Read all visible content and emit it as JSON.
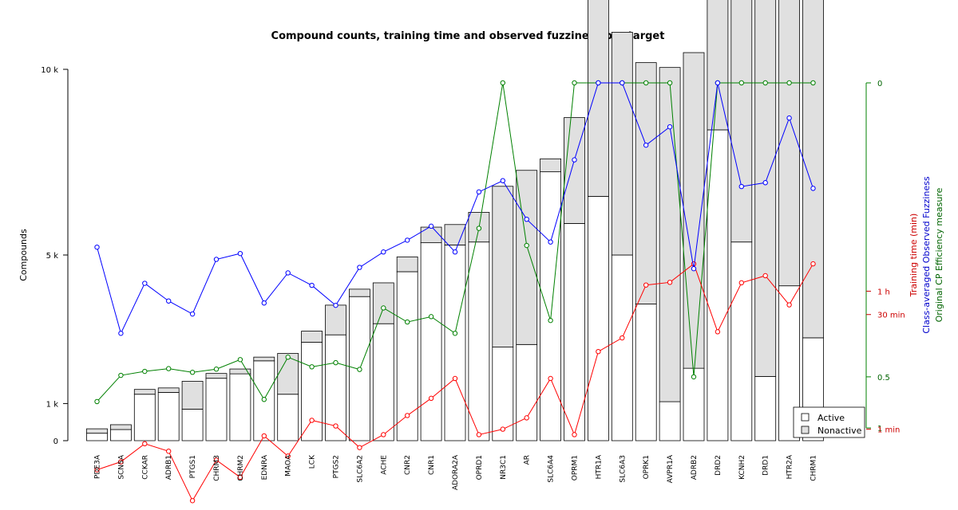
{
  "chart_data": {
    "type": "bar",
    "title": "Compound counts, training time and observed fuzziness per target",
    "ylabel_left": "Compounds",
    "ylabel_right": [
      "Training time (min)",
      "Class-averaged Observed Fuzziness",
      "Original CP Efficiency measure"
    ],
    "left_axis": {
      "ylim": [
        0,
        10000
      ],
      "ticks": [
        0,
        1000,
        5000,
        10000
      ],
      "tick_labels": [
        "0",
        "1 k",
        "5 k",
        "10 k"
      ]
    },
    "right_axis": {
      "scale": "log",
      "ticks": [
        1,
        0.5,
        0
      ],
      "tick_labels": [
        "1",
        "0.5",
        "0"
      ],
      "time_ticks": [
        60,
        30,
        1
      ],
      "time_tick_labels": [
        "1 h",
        "30 min",
        "1 min"
      ]
    },
    "categories": [
      "PDE3A",
      "SCN5A",
      "CCKAR",
      "ADRB1",
      "PTGS1",
      "CHRM3",
      "CHRM2",
      "EDNRA",
      "MAOA",
      "LCK",
      "PTGS2",
      "SLC6A2",
      "ACHE",
      "CNR2",
      "CNR1",
      "ADORA2A",
      "OPRD1",
      "NR3C1",
      "AR",
      "SLC6A4",
      "OPRM1",
      "HTR1A",
      "SLC6A3",
      "OPRK1",
      "AVPR1A",
      "ADRB2",
      "DRD2",
      "KCNH2",
      "DRD1",
      "HTR2A",
      "CHRM1"
    ],
    "series": [
      {
        "name": "Active",
        "color": "#ffffff",
        "values": [
          200,
          300,
          1250,
          1300,
          850,
          1680,
          1800,
          2150,
          1250,
          2650,
          2850,
          3880,
          3150,
          4550,
          5330,
          5270,
          5350,
          2520,
          2590,
          7240,
          5850,
          6580,
          5000,
          3680,
          1050,
          1950,
          8370,
          5350,
          1730,
          4170,
          2770
        ]
      },
      {
        "name": "Nonactive",
        "color": "#e0e0e0",
        "values": [
          120,
          130,
          130,
          120,
          750,
          130,
          130,
          100,
          1100,
          300,
          800,
          200,
          1100,
          400,
          420,
          550,
          800,
          4330,
          4690,
          350,
          2850,
          5500,
          6000,
          6500,
          9000,
          8500,
          3630,
          6650,
          10270,
          7830,
          9230
        ]
      },
      {
        "name": "Training time (min)",
        "color": "#ff0000",
        "values": [
          0.3,
          0.38,
          0.65,
          0.52,
          0.12,
          0.4,
          0.24,
          0.82,
          0.45,
          1.3,
          1.1,
          0.58,
          0.85,
          1.5,
          2.5,
          4.5,
          0.85,
          1.0,
          1.4,
          4.5,
          0.85,
          10,
          15,
          72,
          78,
          135,
          18,
          77,
          95,
          40,
          135
        ]
      },
      {
        "name": "Class-averaged Observed Fuzziness",
        "color": "#0000ff",
        "values": [
          0.08,
          0.275,
          0.136,
          0.175,
          0.21,
          0.096,
          0.088,
          0.18,
          0.117,
          0.14,
          0.186,
          0.108,
          0.086,
          0.072,
          0.058,
          0.086,
          0.033,
          0.027,
          0.052,
          0.074,
          0.018,
          0.0,
          0.0,
          0.013,
          0.008,
          0.11,
          0.0,
          0.03,
          0.028,
          0.006,
          0.031
        ]
      },
      {
        "name": "Original CP Efficiency measure",
        "color": "#008000",
        "values": [
          0.7,
          0.49,
          0.464,
          0.447,
          0.47,
          0.45,
          0.395,
          0.68,
          0.382,
          0.436,
          0.412,
          0.452,
          0.193,
          0.235,
          0.218,
          0.275,
          0.06,
          0.0,
          0.078,
          0.23,
          0.0,
          0.0,
          0.0,
          0.0,
          0.0,
          0.5,
          0.0,
          0.0,
          0.0,
          0.0,
          0.0
        ]
      }
    ],
    "legend": {
      "position": "bottom-right",
      "entries": [
        "Active",
        "Nonactive"
      ]
    }
  }
}
